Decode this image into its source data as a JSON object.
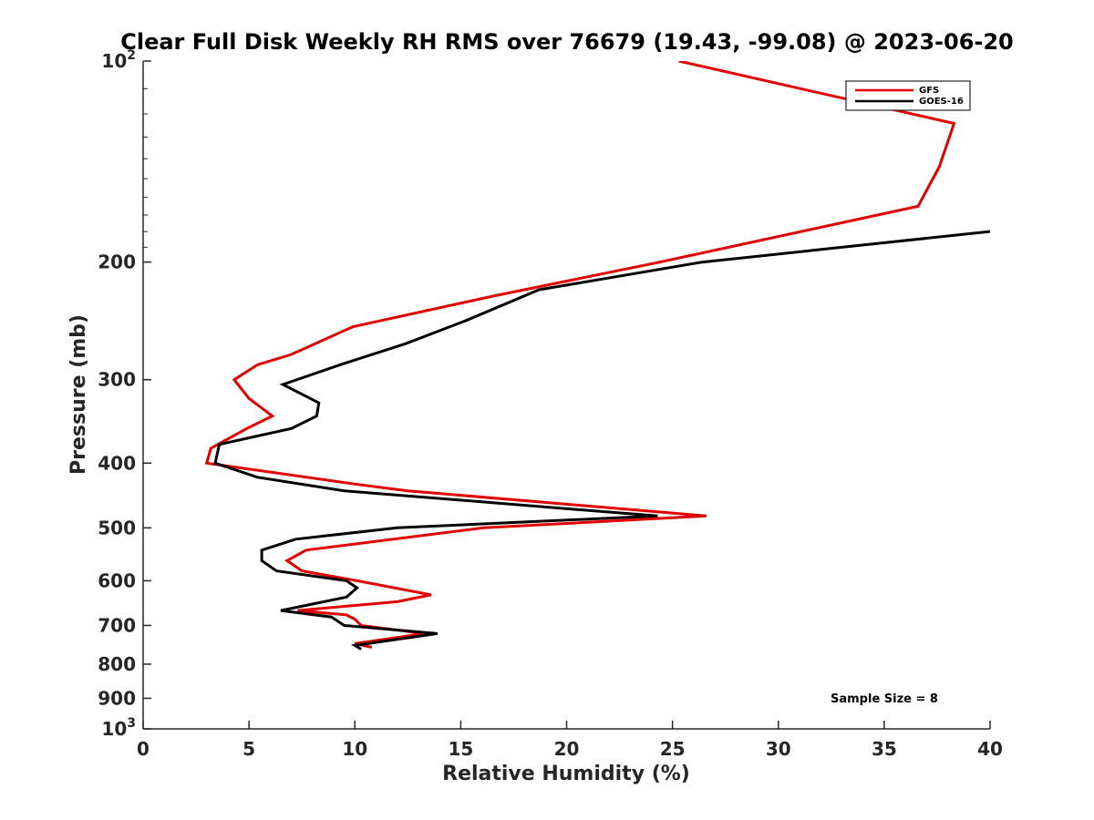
{
  "chart_data": {
    "type": "line",
    "title": "Clear Full Disk Weekly RH RMS over 76679 (19.43, -99.08) @ 2023-06-20",
    "xlabel": "Relative Humidity (%)",
    "ylabel": "Pressure (mb)",
    "xlim": [
      0,
      40
    ],
    "ylim": [
      100,
      1000
    ],
    "y_scale": "log",
    "y_reversed": true,
    "x_ticks": [
      "0",
      "5",
      "10",
      "15",
      "20",
      "25",
      "30",
      "35",
      "40"
    ],
    "y_ticks": [
      {
        "value": 100,
        "base": "10",
        "exp": "2"
      },
      {
        "value": 200,
        "label": "200"
      },
      {
        "value": 300,
        "label": "300"
      },
      {
        "value": 400,
        "label": "400"
      },
      {
        "value": 500,
        "label": "500"
      },
      {
        "value": 600,
        "label": "600"
      },
      {
        "value": 700,
        "label": "700"
      },
      {
        "value": 800,
        "label": "800"
      },
      {
        "value": 900,
        "label": "900"
      },
      {
        "value": 1000,
        "base": "10",
        "exp": "3"
      }
    ],
    "legend_position": "top-right",
    "annotation": "Sample Size = 8",
    "series": [
      {
        "name": "GFS",
        "color": "#e00000",
        "points": [
          [
            25.3,
            100
          ],
          [
            38.3,
            124
          ],
          [
            37.6,
            144
          ],
          [
            36.6,
            165
          ],
          [
            24.4,
            200
          ],
          [
            16.5,
            225
          ],
          [
            9.9,
            250
          ],
          [
            7.0,
            275
          ],
          [
            5.4,
            285
          ],
          [
            4.3,
            300
          ],
          [
            5.0,
            320
          ],
          [
            6.1,
            340
          ],
          [
            4.9,
            355
          ],
          [
            3.2,
            380
          ],
          [
            3.0,
            400
          ],
          [
            10.0,
            430
          ],
          [
            12.5,
            440
          ],
          [
            26.6,
            480
          ],
          [
            16.1,
            500
          ],
          [
            7.7,
            540
          ],
          [
            6.8,
            560
          ],
          [
            7.5,
            580
          ],
          [
            10.1,
            600
          ],
          [
            13.6,
            630
          ],
          [
            12.0,
            645
          ],
          [
            7.3,
            665
          ],
          [
            9.6,
            675
          ],
          [
            10.0,
            685
          ],
          [
            10.3,
            700
          ],
          [
            13.3,
            720
          ],
          [
            10.0,
            745
          ],
          [
            10.8,
            755
          ]
        ]
      },
      {
        "name": "GOES-16",
        "color": "#000000",
        "points": [
          [
            40.0,
            180
          ],
          [
            26.4,
            200
          ],
          [
            18.7,
            220
          ],
          [
            15.2,
            245
          ],
          [
            12.4,
            265
          ],
          [
            9.3,
            285
          ],
          [
            6.6,
            305
          ],
          [
            8.3,
            325
          ],
          [
            8.2,
            340
          ],
          [
            7.0,
            355
          ],
          [
            3.6,
            375
          ],
          [
            3.4,
            400
          ],
          [
            5.4,
            420
          ],
          [
            9.5,
            440
          ],
          [
            24.3,
            480
          ],
          [
            12.0,
            500
          ],
          [
            7.2,
            520
          ],
          [
            5.6,
            540
          ],
          [
            5.6,
            560
          ],
          [
            6.3,
            580
          ],
          [
            9.6,
            600
          ],
          [
            10.1,
            615
          ],
          [
            9.6,
            635
          ],
          [
            6.5,
            665
          ],
          [
            8.9,
            680
          ],
          [
            9.5,
            700
          ],
          [
            13.9,
            720
          ],
          [
            10.0,
            750
          ],
          [
            10.3,
            760
          ]
        ]
      }
    ]
  }
}
